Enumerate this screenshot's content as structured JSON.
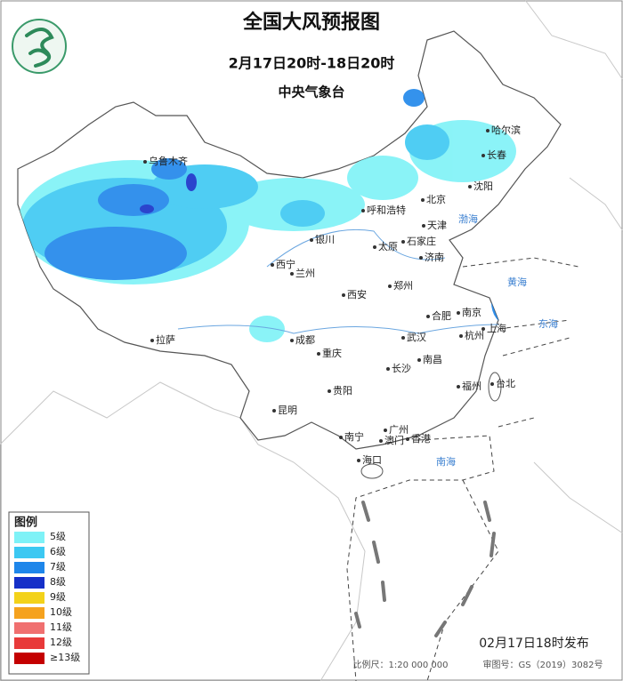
{
  "header": {
    "title": "全国大风预报图",
    "period": "2月17日20时-18日20时",
    "agency": "中央气象台"
  },
  "legend": {
    "title": "图例",
    "items": [
      {
        "label": "5级",
        "color": "#7ef2f7"
      },
      {
        "label": "6级",
        "color": "#3cc8f2"
      },
      {
        "label": "7级",
        "color": "#1e86ea"
      },
      {
        "label": "8级",
        "color": "#1530c8"
      },
      {
        "label": "9级",
        "color": "#f3d21a"
      },
      {
        "label": "10级",
        "color": "#f5a21e"
      },
      {
        "label": "11级",
        "color": "#f07070"
      },
      {
        "label": "12级",
        "color": "#e83a3a"
      },
      {
        "label": "≥13级",
        "color": "#c40000"
      }
    ]
  },
  "cities": [
    "乌鲁木齐",
    "呼和浩特",
    "北京",
    "天津",
    "石家庄",
    "太原",
    "济南",
    "沈阳",
    "长春",
    "哈尔滨",
    "银川",
    "西宁",
    "兰州",
    "西安",
    "郑州",
    "合肥",
    "南京",
    "上海",
    "杭州",
    "武汉",
    "南昌",
    "长沙",
    "成都",
    "重庆",
    "贵阳",
    "昆明",
    "拉萨",
    "福州",
    "台北",
    "广州",
    "香港",
    "澳门",
    "南宁",
    "海口"
  ],
  "seas": [
    "渤海",
    "黄海",
    "东海",
    "南海"
  ],
  "footer": {
    "issued": "02月17日18时发布",
    "scale": "比例尺：1:20 000 000",
    "map_number": "审图号：GS（2019）3082号"
  }
}
